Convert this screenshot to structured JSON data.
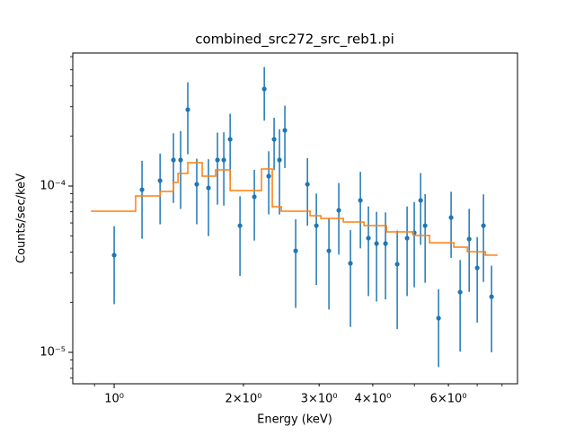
{
  "chart_data": {
    "type": "errorbar",
    "title": "combined_src272_src_reb1.pi",
    "xlabel": "Energy (keV)",
    "ylabel": "Counts/sec/keV",
    "xscale": "log",
    "yscale": "log",
    "xlim": [
      0.801,
      8.69
    ],
    "ylim": [
      6.47e-06,
      0.000631
    ],
    "xticks": [
      {
        "value": 1,
        "label": "10⁰"
      },
      {
        "value": 2,
        "label": "2×10⁰"
      },
      {
        "value": 3,
        "label": "3×10⁰"
      },
      {
        "value": 4,
        "label": "4×10⁰"
      },
      {
        "value": 6,
        "label": "6×10⁰"
      }
    ],
    "xminorticks": [
      0.9,
      5,
      7,
      8
    ],
    "yticks": [
      {
        "value": 1e-05,
        "label": "10⁻⁵"
      },
      {
        "value": 0.0001,
        "label": "10⁻⁴"
      }
    ],
    "yminorticks": [
      7e-06,
      8e-06,
      9e-06,
      2e-05,
      3e-05,
      4e-05,
      5e-05,
      6e-05,
      7e-05,
      8e-05,
      9e-05,
      0.0002,
      0.0003,
      0.0004,
      0.0005,
      0.0006
    ],
    "series": [
      {
        "color": "#1f77b4",
        "x": [
          1.0,
          1.161,
          1.279,
          1.374,
          1.428,
          1.484,
          1.557,
          1.658,
          1.74,
          1.8,
          1.862,
          1.963,
          2.12,
          2.236,
          2.29,
          2.357,
          2.426,
          2.497,
          2.646,
          2.818,
          2.956,
          3.162,
          3.334,
          3.549,
          3.743,
          3.908,
          4.082,
          4.283,
          4.56,
          4.808,
          4.996,
          5.17,
          5.296,
          5.692,
          6.087,
          6.389,
          6.706,
          7.002,
          7.241,
          7.562
        ],
        "values": [
          3.84e-05,
          9.51e-05,
          0.0001078,
          0.0001435,
          0.0001435,
          0.0002881,
          0.0001025,
          9.75e-05,
          0.0001435,
          0.0001435,
          0.000191,
          5.78e-05,
          8.61e-05,
          0.0003836,
          0.0001147,
          0.000191,
          0.0001435,
          0.0002163,
          4.08e-05,
          0.0001025,
          5.78e-05,
          4.08e-05,
          7.15e-05,
          3.43e-05,
          8.2e-05,
          4.86e-05,
          4.51e-05,
          4.51e-05,
          3.39e-05,
          4.86e-05,
          5.24e-05,
          8.2e-05,
          5.78e-05,
          1.605e-05,
          6.47e-05,
          2.3e-05,
          4.8e-05,
          3.22e-05,
          5.78e-05,
          2.16e-05
        ],
        "yerr": [
          1.89e-05,
          4.69e-05,
          4.89e-05,
          6.43e-05,
          7.07e-05,
          0.0001328,
          4.36e-05,
          4.75e-05,
          6.62e-05,
          6.72e-05,
          8.13e-05,
          2.9e-05,
          3.91e-05,
          0.0001362,
          4.71e-05,
          6.63e-05,
          7.61e-05,
          8.8e-05,
          2.23e-05,
          4.48e-05,
          3.24e-05,
          2.27e-05,
          3.28e-05,
          2.01e-05,
          3.98e-05,
          2.68e-05,
          2.49e-05,
          2.43e-05,
          2.01e-05,
          2.68e-05,
          2.78e-05,
          3.77e-05,
          3.16e-05,
          7.9e-06,
          2.77e-05,
          1.29e-05,
          2.49e-05,
          1.71e-05,
          3.13e-05,
          1.16e-05
        ]
      }
    ],
    "model": {
      "color": "#ff7f0e",
      "edges": [
        0.886,
        1.122,
        1.279,
        1.374,
        1.408,
        1.484,
        1.603,
        1.723,
        1.862,
        2.203,
        2.334,
        2.45,
        2.858,
        3.028,
        3.416,
        3.816,
        4.304,
        4.973,
        5.424,
        6.178,
        6.641,
        7.311,
        7.784
      ],
      "values": [
        7.06e-05,
        8.72e-05,
        9.28e-05,
        0.0001051,
        0.000119,
        0.0001382,
        0.0001147,
        0.0001251,
        9.4e-05,
        0.0001267,
        7.51e-05,
        7.06e-05,
        6.63e-05,
        6.39e-05,
        6.08e-05,
        5.78e-05,
        5.3e-05,
        5.04e-05,
        4.56e-05,
        4.29e-05,
        4.03e-05,
        3.84e-05
      ]
    }
  }
}
